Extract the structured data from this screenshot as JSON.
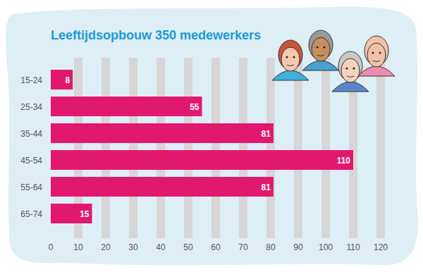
{
  "chart_data": {
    "type": "bar",
    "title": "Leeftijdsopbouw 350 medewerkers",
    "orientation": "horizontal",
    "categories": [
      "15-24",
      "25-34",
      "35-44",
      "45-54",
      "55-64",
      "65-74"
    ],
    "values": [
      8,
      55,
      81,
      110,
      81,
      15
    ],
    "color": "#e2186f",
    "xlim": [
      0,
      120
    ],
    "xticks": [
      0,
      10,
      20,
      30,
      40,
      50,
      60,
      70,
      80,
      90,
      100,
      110,
      120
    ],
    "grid": true,
    "data_labels": true
  }
}
